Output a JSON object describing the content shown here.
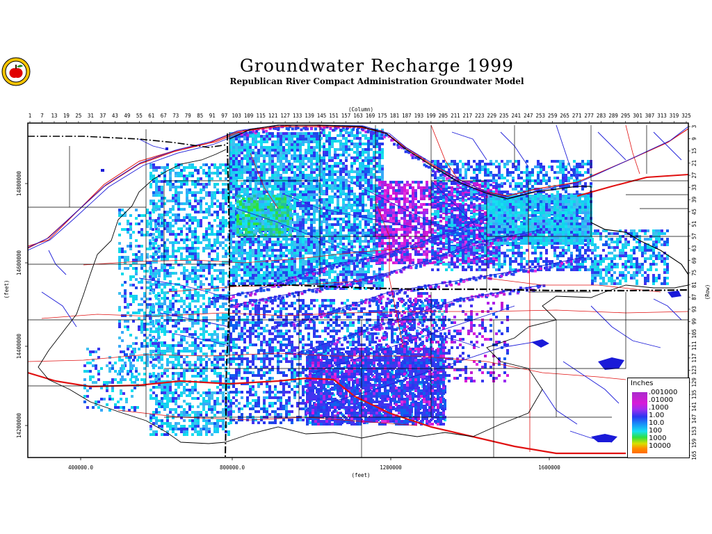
{
  "title": "Groundwater Recharge 1999",
  "subtitle": "Republican River Compact Administration Groundwater Model",
  "top_axis": {
    "label": "(Column)",
    "ticks": [
      "1",
      "7",
      "13",
      "19",
      "25",
      "31",
      "37",
      "43",
      "49",
      "55",
      "61",
      "67",
      "73",
      "79",
      "85",
      "91",
      "97",
      "103",
      "109",
      "115",
      "121",
      "127",
      "133",
      "139",
      "145",
      "151",
      "157",
      "163",
      "169",
      "175",
      "181",
      "187",
      "193",
      "199",
      "205",
      "211",
      "217",
      "223",
      "229",
      "235",
      "241",
      "247",
      "253",
      "259",
      "265",
      "271",
      "277",
      "283",
      "289",
      "295",
      "301",
      "307",
      "313",
      "319",
      "325"
    ]
  },
  "right_axis": {
    "label": "(Row)",
    "ticks": [
      "3",
      "9",
      "15",
      "21",
      "27",
      "33",
      "39",
      "45",
      "51",
      "57",
      "63",
      "69",
      "75",
      "81",
      "87",
      "93",
      "99",
      "105",
      "111",
      "117",
      "123",
      "129",
      "135",
      "141",
      "147",
      "153",
      "159",
      "165"
    ]
  },
  "bottom_axis": {
    "label": "(feet)",
    "ticks": [
      "400000.0",
      "800000.0",
      "1200000",
      "1600000"
    ]
  },
  "left_axis": {
    "label": "(feet)",
    "ticks": [
      "14800000",
      "14600000",
      "14400000",
      "14200000"
    ]
  },
  "legend": {
    "title": "Inches",
    "labels": [
      ".001000",
      ".01000",
      ".1000",
      "1.00",
      "10.0",
      "100",
      "1000",
      "10000"
    ]
  },
  "colors": {
    "road": "#e01010",
    "stream": "#1a1ad8",
    "boundary": "#000000",
    "recharge_low": "#d81ad8",
    "recharge_mid": "#2a35f0",
    "recharge_high": "#16e0f0",
    "recharge_peak": "#2fe040"
  }
}
